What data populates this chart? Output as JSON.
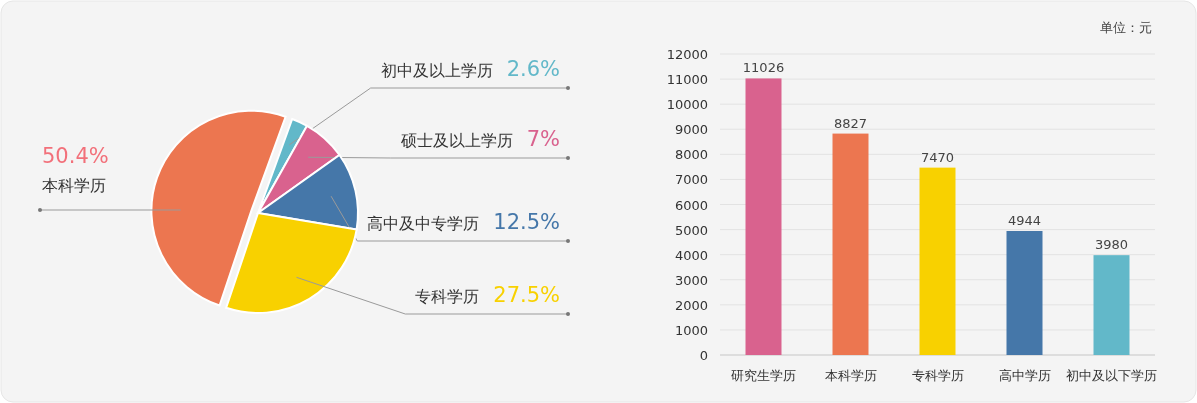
{
  "chart_data": [
    {
      "type": "pie",
      "categories": [
        "初中及以上学历",
        "硕士及以上学历",
        "高中及中专学历",
        "专科学历",
        "本科学历"
      ],
      "values": [
        2.6,
        7,
        12.5,
        27.5,
        50.4
      ],
      "value_labels": [
        "2.6%",
        "7%",
        "12.5%",
        "27.5%",
        "50.4%"
      ],
      "colors": [
        "#62b8c9",
        "#d9628e",
        "#4577a9",
        "#f8d100",
        "#ec7650"
      ]
    },
    {
      "type": "bar",
      "categories": [
        "研究生学历",
        "本科学历",
        "专科学历",
        "高中学历",
        "初中及以下学历"
      ],
      "values": [
        11026,
        8827,
        7470,
        4944,
        3980
      ],
      "colors": [
        "#d9628e",
        "#ec7650",
        "#f8d100",
        "#4577a9",
        "#62b8c9"
      ],
      "ylim": [
        0,
        12000
      ],
      "yticks": [
        0,
        1000,
        2000,
        3000,
        4000,
        5000,
        6000,
        7000,
        8000,
        9000,
        10000,
        11000,
        12000
      ],
      "grid": "y",
      "data_labels": true,
      "annotations": [
        "单位：元"
      ]
    }
  ]
}
